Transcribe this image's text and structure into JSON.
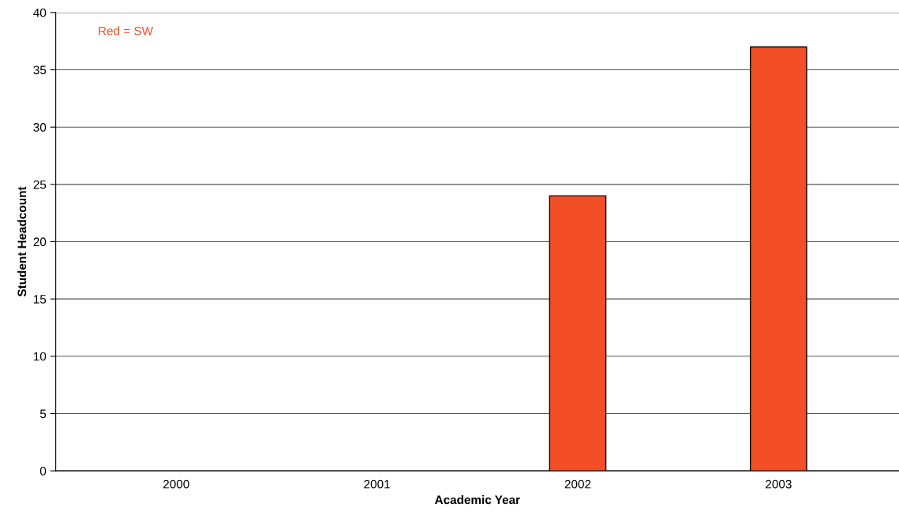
{
  "chart_data": {
    "type": "bar",
    "xlabel": "Academic Year",
    "ylabel": "Student Headcount",
    "categories": [
      "2000",
      "2001",
      "2002",
      "2003"
    ],
    "series": [
      {
        "color": "#f24f26",
        "values": [
          null,
          null,
          24,
          37
        ]
      }
    ],
    "ylim": [
      0,
      40
    ],
    "yticks": [
      0,
      5,
      10,
      15,
      20,
      25,
      30,
      35,
      40
    ],
    "grid": "y",
    "annotations": [
      "Red = SW"
    ]
  }
}
